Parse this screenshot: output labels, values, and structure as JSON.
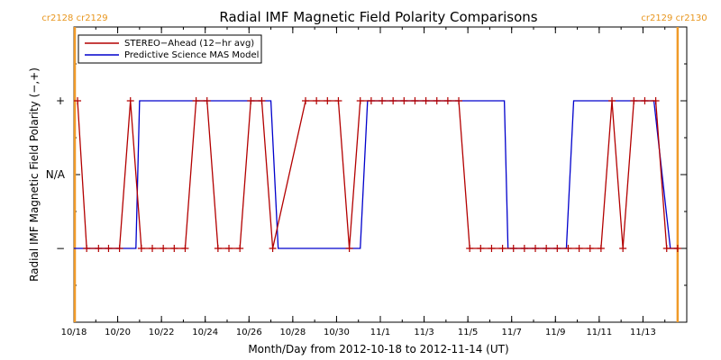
{
  "chart_data": {
    "type": "line",
    "title": "Radial IMF Magnetic Field Polarity Comparisons",
    "xlabel": "Month/Day from 2012-10-18 to 2012-11-14 (UT)",
    "ylabel": "Radial IMF Magnetic Field Polarity (−,+)",
    "x_range": [
      "2012-10-18",
      "2012-11-14"
    ],
    "x_ticks": [
      "10/18",
      "10/20",
      "10/22",
      "10/24",
      "10/26",
      "10/28",
      "10/30",
      "11/1",
      "11/3",
      "11/5",
      "11/7",
      "11/9",
      "11/11",
      "11/13"
    ],
    "y_ticks": [
      "+",
      "N/A",
      "−"
    ],
    "y_levels": {
      "+": 1,
      "N/A": 0,
      "−": -1
    },
    "ylim": [
      -2,
      2
    ],
    "cr_labels": {
      "left": "cr2128 cr2129",
      "right": "cr2129 cr2130"
    },
    "cr_boundaries": [
      "2012-10-18T01:00",
      "2012-11-14T14:00"
    ],
    "legend": {
      "placement": "top-left",
      "entries": [
        "STEREO−Ahead (12−hr avg)",
        "Predictive Science MAS Model"
      ]
    },
    "series": [
      {
        "name": "STEREO−Ahead (12−hr avg)",
        "color": "#b30000",
        "marker": "+",
        "points": [
          [
            "2012-10-18T04:00",
            1
          ],
          [
            "2012-10-18T14:00",
            -1
          ],
          [
            "2012-10-19T03:00",
            -1
          ],
          [
            "2012-10-19T14:00",
            -1
          ],
          [
            "2012-10-20T02:00",
            -1
          ],
          [
            "2012-10-20T14:00",
            1
          ],
          [
            "2012-10-21T02:00",
            -1
          ],
          [
            "2012-10-21T14:00",
            -1
          ],
          [
            "2012-10-22T02:00",
            -1
          ],
          [
            "2012-10-22T14:00",
            -1
          ],
          [
            "2012-10-23T02:00",
            -1
          ],
          [
            "2012-10-23T14:00",
            1
          ],
          [
            "2012-10-24T02:00",
            1
          ],
          [
            "2012-10-24T14:00",
            -1
          ],
          [
            "2012-10-25T02:00",
            -1
          ],
          [
            "2012-10-25T14:00",
            -1
          ],
          [
            "2012-10-26T02:00",
            1
          ],
          [
            "2012-10-26T14:00",
            1
          ],
          [
            "2012-10-27T02:00",
            -1
          ],
          [
            "2012-10-28T14:00",
            1
          ],
          [
            "2012-10-29T02:00",
            1
          ],
          [
            "2012-10-29T14:00",
            1
          ],
          [
            "2012-10-30T02:00",
            1
          ],
          [
            "2012-10-30T14:00",
            -1
          ],
          [
            "2012-10-31T02:00",
            1
          ],
          [
            "2012-10-31T14:00",
            1
          ],
          [
            "2012-11-01T02:00",
            1
          ],
          [
            "2012-11-01T14:00",
            1
          ],
          [
            "2012-11-02T02:00",
            1
          ],
          [
            "2012-11-02T14:00",
            1
          ],
          [
            "2012-11-03T02:00",
            1
          ],
          [
            "2012-11-03T14:00",
            1
          ],
          [
            "2012-11-04T02:00",
            1
          ],
          [
            "2012-11-04T14:00",
            1
          ],
          [
            "2012-11-05T02:00",
            -1
          ],
          [
            "2012-11-05T14:00",
            -1
          ],
          [
            "2012-11-06T02:00",
            -1
          ],
          [
            "2012-11-06T14:00",
            -1
          ],
          [
            "2012-11-07T02:00",
            -1
          ],
          [
            "2012-11-07T14:00",
            -1
          ],
          [
            "2012-11-08T02:00",
            -1
          ],
          [
            "2012-11-08T14:00",
            -1
          ],
          [
            "2012-11-09T02:00",
            -1
          ],
          [
            "2012-11-09T14:00",
            -1
          ],
          [
            "2012-11-10T02:00",
            -1
          ],
          [
            "2012-11-10T14:00",
            -1
          ],
          [
            "2012-11-11T02:00",
            -1
          ],
          [
            "2012-11-11T14:00",
            1
          ],
          [
            "2012-11-12T02:00",
            -1
          ],
          [
            "2012-11-12T14:00",
            1
          ],
          [
            "2012-11-13T02:00",
            1
          ],
          [
            "2012-11-13T14:00",
            1
          ],
          [
            "2012-11-14T02:00",
            -1
          ],
          [
            "2012-11-14T14:00",
            -1
          ]
        ]
      },
      {
        "name": "Predictive Science MAS Model",
        "color": "#0000cc",
        "marker": "none",
        "points": [
          [
            "2012-10-18T00:00",
            -1
          ],
          [
            "2012-10-20T20:00",
            -1
          ],
          [
            "2012-10-21T00:00",
            1
          ],
          [
            "2012-10-27T00:00",
            1
          ],
          [
            "2012-10-27T08:00",
            -1
          ],
          [
            "2012-10-31T02:00",
            -1
          ],
          [
            "2012-10-31T10:00",
            1
          ],
          [
            "2012-11-06T16:00",
            1
          ],
          [
            "2012-11-06T20:00",
            -1
          ],
          [
            "2012-11-09T12:00",
            -1
          ],
          [
            "2012-11-09T20:00",
            1
          ],
          [
            "2012-11-13T12:00",
            1
          ],
          [
            "2012-11-14T06:00",
            -1
          ],
          [
            "2012-11-14T14:00",
            -1
          ]
        ]
      }
    ]
  }
}
